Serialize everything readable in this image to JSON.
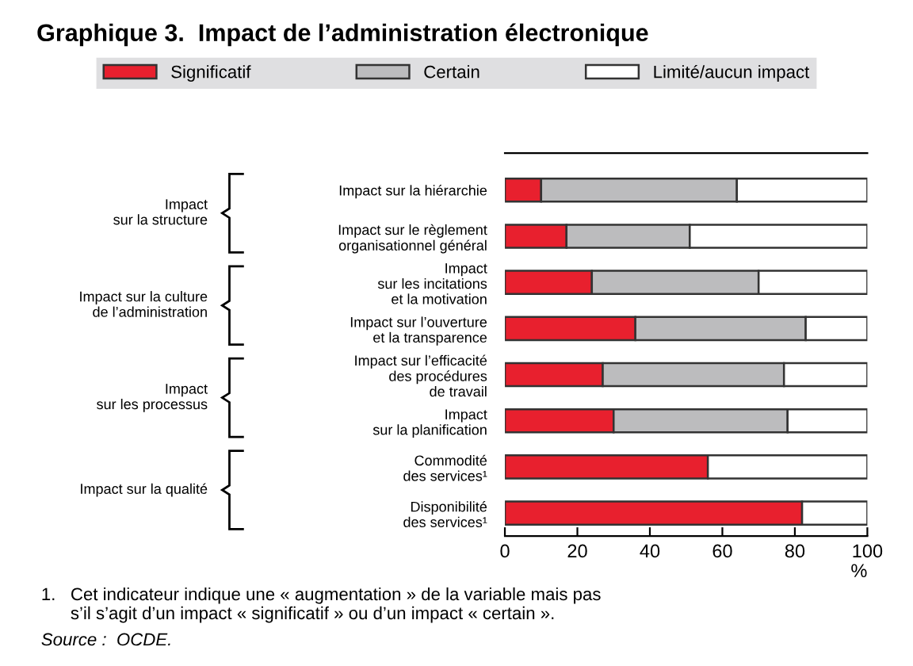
{
  "chart_data": {
    "type": "bar",
    "orientation": "horizontal",
    "stacked": true,
    "title": "Graphique 3.  Impact de l’administration électronique",
    "categories": [
      "Impact sur la hiérarchie",
      "Impact sur le règlement\norganisationnel général",
      "Impact\nsur les incitations\net la motivation",
      "Impact sur l’ouverture\net la transparence",
      "Impact sur l’efficacité\ndes procédures\nde travail",
      "Impact\nsur la planification",
      "Commodité\ndes services¹",
      "Disponibilité\ndes services¹"
    ],
    "series": [
      {
        "name": "Significatif",
        "color": "#e8202e",
        "values": [
          10,
          17,
          24,
          36,
          27,
          30,
          56,
          82
        ]
      },
      {
        "name": "Certain",
        "color": "#bcbcbe",
        "values": [
          54,
          34,
          46,
          47,
          50,
          48,
          null,
          null
        ]
      },
      {
        "name": "Limité/aucun impact",
        "color": "#ffffff",
        "values": [
          36,
          49,
          30,
          17,
          23,
          22,
          44,
          18
        ]
      }
    ],
    "xlim": [
      0,
      100
    ],
    "xticks": [
      0,
      20,
      40,
      60,
      80,
      100
    ],
    "xlabel": "%",
    "grid": false,
    "legend": "top",
    "annotations": [
      "Impact\nsur la structure",
      "Impact sur la culture\nde l’administration",
      "Impact\nsur les processus",
      "Impact sur la qualité",
      "1.   Cet indicateur indique une « augmentation » de la variable mais pas\n      s’il s’agit d’un impact « significatif » ou d’un impact « certain ».",
      "Source :  OCDE."
    ]
  }
}
